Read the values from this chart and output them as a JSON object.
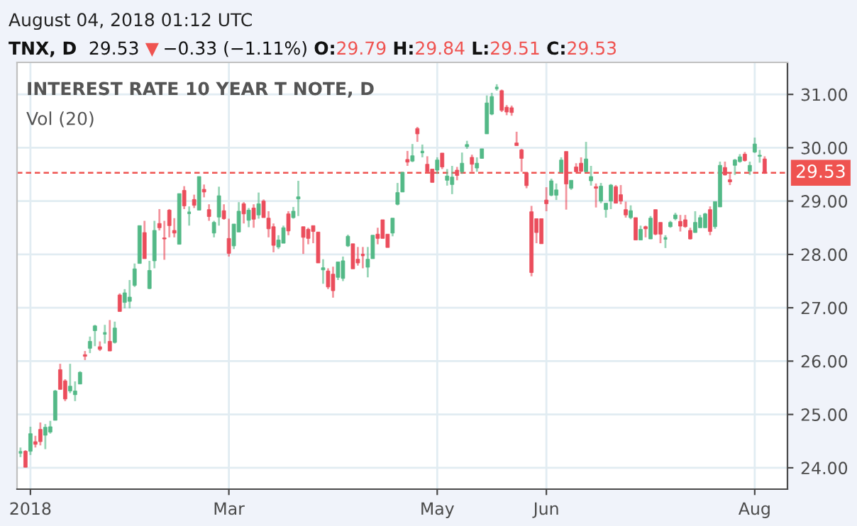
{
  "chart_data": {
    "type": "candlestick",
    "title": "INTEREST RATE 10 YEAR T NOTE, D",
    "annotations": [
      "August 04, 2018 01:12 UTC",
      "TNX, D",
      "29.53",
      "▼",
      "−0.33 (−1.11%)",
      "O:",
      "29.79",
      "H:",
      "29.84",
      "L:",
      "29.51",
      "C:",
      "29.53",
      "Vol (20)"
    ],
    "categories": [
      null,
      null,
      "2018",
      null,
      null,
      null,
      null,
      null,
      null,
      null,
      null,
      null,
      null,
      null,
      null,
      null,
      null,
      null,
      null,
      null,
      null,
      null,
      null,
      null,
      null,
      null,
      null,
      null,
      null,
      null,
      null,
      null,
      null,
      null,
      null,
      null,
      null,
      null,
      null,
      null,
      null,
      null,
      "Mar",
      null,
      null,
      null,
      null,
      null,
      null,
      null,
      null,
      null,
      null,
      null,
      null,
      null,
      null,
      null,
      null,
      null,
      null,
      null,
      null,
      null,
      null,
      null,
      null,
      null,
      null,
      null,
      null,
      null,
      null,
      null,
      null,
      null,
      null,
      null,
      null,
      null,
      null,
      null,
      null,
      null,
      "May",
      null,
      null,
      null,
      null,
      null,
      null,
      null,
      null,
      null,
      null,
      null,
      null,
      null,
      null,
      null,
      null,
      null,
      null,
      null,
      null,
      null,
      "Jun",
      null,
      null,
      null,
      null,
      null,
      null,
      null,
      null,
      null,
      null,
      null,
      null,
      null,
      null,
      null,
      null,
      null,
      null,
      null,
      null,
      null,
      null,
      null,
      null,
      null,
      null,
      null,
      null,
      null,
      null,
      null,
      null,
      null,
      null,
      null,
      null,
      null,
      null,
      null,
      null,
      null,
      "Aug",
      null,
      null
    ],
    "ohlc": [
      [
        24.29,
        24.38,
        24.2,
        24.29
      ],
      [
        24.31,
        24.33,
        24.01,
        24.01
      ],
      [
        24.31,
        24.77,
        24.24,
        24.64
      ],
      [
        24.49,
        24.6,
        24.38,
        24.44
      ],
      [
        24.72,
        24.85,
        24.42,
        24.49
      ],
      [
        24.61,
        24.82,
        24.35,
        24.76
      ],
      [
        24.67,
        24.88,
        24.64,
        24.77
      ],
      [
        24.89,
        25.46,
        24.89,
        25.44
      ],
      [
        25.84,
        25.95,
        25.47,
        25.47
      ],
      [
        25.63,
        25.66,
        25.25,
        25.29
      ],
      [
        25.44,
        25.95,
        25.4,
        25.53
      ],
      [
        25.37,
        25.62,
        25.25,
        25.44
      ],
      [
        25.57,
        25.81,
        25.57,
        25.79
      ],
      [
        26.12,
        26.19,
        26.02,
        26.09
      ],
      [
        26.24,
        26.46,
        26.15,
        26.37
      ],
      [
        26.57,
        26.68,
        26.28,
        26.66
      ],
      [
        26.27,
        26.37,
        26.19,
        26.22
      ],
      [
        26.52,
        26.68,
        26.33,
        26.52
      ],
      [
        26.37,
        26.77,
        26.19,
        26.19
      ],
      [
        26.35,
        26.74,
        26.33,
        26.62
      ],
      [
        27.24,
        27.27,
        26.93,
        26.93
      ],
      [
        27.1,
        27.35,
        26.99,
        27.28
      ],
      [
        27.12,
        27.52,
        26.99,
        27.2
      ],
      [
        27.42,
        27.83,
        27.39,
        27.73
      ],
      [
        27.83,
        28.54,
        27.83,
        28.54
      ],
      [
        28.41,
        28.63,
        27.92,
        27.92
      ],
      [
        27.36,
        27.88,
        27.35,
        27.7
      ],
      [
        27.88,
        28.63,
        27.74,
        28.45
      ],
      [
        28.58,
        28.85,
        28.45,
        28.5
      ],
      [
        28.31,
        28.63,
        27.9,
        28.29
      ],
      [
        28.83,
        28.85,
        28.32,
        28.54
      ],
      [
        28.45,
        28.68,
        28.32,
        28.4
      ],
      [
        28.19,
        29.14,
        28.19,
        29.14
      ],
      [
        29.2,
        29.28,
        28.85,
        28.91
      ],
      [
        28.78,
        28.9,
        28.54,
        28.78
      ],
      [
        29.03,
        29.12,
        28.87,
        28.92
      ],
      [
        28.83,
        29.46,
        28.83,
        29.46
      ],
      [
        29.22,
        29.31,
        29.07,
        29.17
      ],
      [
        28.84,
        28.94,
        28.63,
        28.71
      ],
      [
        28.4,
        28.63,
        28.32,
        28.6
      ],
      [
        28.7,
        29.27,
        28.54,
        29.1
      ],
      [
        28.82,
        28.94,
        28.65,
        28.67
      ],
      [
        28.3,
        28.67,
        27.96,
        28.02
      ],
      [
        28.16,
        28.57,
        28.1,
        28.57
      ],
      [
        28.42,
        28.98,
        28.42,
        28.81
      ],
      [
        28.95,
        28.98,
        28.58,
        28.76
      ],
      [
        28.64,
        28.87,
        28.51,
        28.83
      ],
      [
        28.87,
        28.94,
        28.5,
        28.66
      ],
      [
        28.74,
        29.16,
        28.67,
        28.95
      ],
      [
        29.0,
        29.03,
        28.69,
        28.69
      ],
      [
        28.68,
        28.81,
        28.32,
        28.48
      ],
      [
        28.52,
        28.58,
        28.04,
        28.17
      ],
      [
        28.14,
        28.36,
        28.1,
        28.27
      ],
      [
        28.21,
        28.54,
        28.21,
        28.5
      ],
      [
        28.76,
        28.81,
        28.36,
        28.44
      ],
      [
        28.69,
        28.89,
        28.67,
        28.81
      ],
      [
        29.04,
        29.38,
        28.72,
        29.08
      ],
      [
        28.52,
        28.52,
        28.01,
        28.32
      ],
      [
        28.47,
        28.5,
        28.19,
        28.3
      ],
      [
        28.54,
        28.54,
        28.21,
        28.43
      ],
      [
        28.42,
        28.42,
        27.84,
        27.84
      ],
      [
        27.71,
        27.91,
        27.45,
        27.75
      ],
      [
        27.69,
        27.74,
        27.35,
        27.39
      ],
      [
        27.63,
        27.77,
        27.19,
        27.32
      ],
      [
        27.57,
        27.86,
        27.52,
        27.86
      ],
      [
        27.55,
        27.96,
        27.5,
        27.88
      ],
      [
        28.16,
        28.37,
        28.14,
        28.34
      ],
      [
        28.2,
        28.2,
        27.73,
        27.73
      ],
      [
        27.91,
        28.14,
        27.79,
        27.84
      ],
      [
        27.99,
        28.14,
        27.74,
        27.99
      ],
      [
        27.76,
        28.14,
        27.57,
        27.91
      ],
      [
        27.92,
        28.36,
        27.92,
        28.36
      ],
      [
        28.38,
        28.5,
        28.19,
        28.3
      ],
      [
        28.65,
        28.65,
        28.3,
        28.3
      ],
      [
        28.38,
        28.38,
        28.13,
        28.13
      ],
      [
        28.4,
        28.68,
        28.34,
        28.68
      ],
      [
        28.94,
        29.34,
        28.92,
        29.16
      ],
      [
        29.17,
        29.54,
        29.17,
        29.54
      ],
      [
        29.78,
        29.94,
        29.66,
        29.73
      ],
      [
        29.75,
        30.07,
        29.73,
        29.85
      ],
      [
        30.36,
        30.39,
        30.11,
        30.26
      ],
      [
        29.92,
        30.06,
        29.82,
        29.92
      ],
      [
        29.69,
        29.84,
        29.55,
        29.55
      ],
      [
        29.6,
        29.6,
        29.35,
        29.35
      ],
      [
        29.58,
        29.82,
        29.51,
        29.77
      ],
      [
        29.9,
        29.9,
        29.6,
        29.64
      ],
      [
        29.39,
        29.6,
        29.29,
        29.47
      ],
      [
        29.31,
        29.66,
        29.13,
        29.45
      ],
      [
        29.58,
        29.64,
        29.39,
        29.48
      ],
      [
        29.55,
        29.91,
        29.51,
        29.71
      ],
      [
        30.02,
        30.13,
        29.98,
        30.06
      ],
      [
        29.82,
        29.87,
        29.55,
        29.69
      ],
      [
        29.62,
        29.82,
        29.55,
        29.71
      ],
      [
        29.8,
        29.98,
        29.8,
        29.98
      ],
      [
        30.26,
        30.98,
        30.26,
        30.84
      ],
      [
        30.63,
        31.03,
        30.61,
        30.96
      ],
      [
        31.12,
        31.19,
        31.07,
        31.12
      ],
      [
        31.07,
        31.09,
        30.67,
        30.7
      ],
      [
        30.76,
        30.8,
        30.61,
        30.67
      ],
      [
        30.75,
        30.79,
        30.6,
        30.66
      ],
      [
        30.09,
        30.3,
        30.04,
        30.04
      ],
      [
        29.96,
        29.98,
        29.55,
        29.8
      ],
      [
        29.53,
        29.53,
        29.24,
        29.29
      ],
      [
        28.8,
        28.91,
        27.59,
        27.66
      ],
      [
        28.67,
        28.67,
        28.21,
        28.41
      ],
      [
        28.67,
        28.67,
        28.2,
        28.2
      ],
      [
        29.02,
        29.26,
        28.81,
        28.95
      ],
      [
        29.11,
        29.42,
        29.09,
        29.38
      ],
      [
        29.11,
        29.33,
        29.02,
        29.21
      ],
      [
        29.54,
        29.82,
        29.54,
        29.77
      ],
      [
        29.93,
        29.93,
        28.84,
        29.32
      ],
      [
        29.24,
        29.39,
        29.21,
        29.39
      ],
      [
        29.64,
        29.71,
        29.54,
        29.55
      ],
      [
        29.71,
        29.82,
        29.54,
        29.56
      ],
      [
        29.55,
        30.11,
        29.55,
        29.79
      ],
      [
        29.38,
        29.66,
        29.29,
        29.46
      ],
      [
        29.27,
        29.33,
        28.88,
        29.24
      ],
      [
        29.0,
        29.34,
        28.96,
        29.28
      ],
      [
        28.84,
        28.96,
        28.69,
        28.96
      ],
      [
        29.0,
        29.32,
        28.85,
        29.3
      ],
      [
        29.27,
        29.3,
        28.96,
        28.96
      ],
      [
        29.12,
        29.3,
        28.94,
        29.0
      ],
      [
        28.84,
        28.99,
        28.69,
        28.74
      ],
      [
        28.69,
        28.92,
        28.66,
        28.82
      ],
      [
        28.69,
        28.69,
        28.27,
        28.27
      ],
      [
        28.27,
        28.54,
        28.27,
        28.47
      ],
      [
        28.52,
        28.54,
        28.32,
        28.48
      ],
      [
        28.29,
        28.72,
        28.29,
        28.68
      ],
      [
        28.84,
        28.84,
        28.36,
        28.38
      ],
      [
        28.6,
        28.6,
        28.21,
        28.38
      ],
      [
        28.3,
        28.36,
        28.12,
        28.3
      ],
      [
        28.52,
        28.63,
        28.5,
        28.6
      ],
      [
        28.67,
        28.78,
        28.64,
        28.74
      ],
      [
        28.62,
        28.74,
        28.43,
        28.53
      ],
      [
        28.65,
        28.74,
        28.5,
        28.52
      ],
      [
        28.45,
        28.5,
        28.28,
        28.29
      ],
      [
        28.41,
        28.81,
        28.41,
        28.6
      ],
      [
        28.5,
        28.74,
        28.5,
        28.69
      ],
      [
        28.5,
        28.78,
        28.5,
        28.76
      ],
      [
        28.84,
        28.9,
        28.36,
        28.43
      ],
      [
        28.52,
        28.99,
        28.48,
        28.99
      ],
      [
        28.89,
        29.74,
        28.89,
        29.67
      ],
      [
        29.63,
        29.74,
        29.48,
        29.49
      ],
      [
        29.4,
        29.52,
        29.3,
        29.36
      ],
      [
        29.67,
        29.79,
        29.49,
        29.77
      ],
      [
        29.74,
        29.88,
        29.72,
        29.83
      ],
      [
        29.88,
        29.92,
        29.74,
        29.76
      ],
      [
        29.56,
        29.74,
        29.49,
        29.67
      ],
      [
        29.92,
        30.19,
        29.9,
        30.07
      ],
      [
        29.84,
        29.96,
        29.72,
        29.86
      ],
      [
        29.79,
        29.84,
        29.51,
        29.53
      ]
    ],
    "colors": [
      "#53b987",
      "#eb4d5c",
      "#53b987",
      "#eb4d5c",
      "#eb4d5c",
      "#53b987",
      "#53b987",
      "#53b987",
      "#eb4d5c",
      "#eb4d5c",
      "#53b987",
      "#53b987",
      "#53b987",
      "#eb4d5c",
      "#53b987",
      "#53b987",
      "#eb4d5c",
      "#53b987",
      "#eb4d5c",
      "#53b987",
      "#eb4d5c",
      "#53b987",
      "#53b987",
      "#53b987",
      "#53b987",
      "#eb4d5c",
      "#53b987",
      "#53b987",
      "#eb4d5c",
      "#eb4d5c",
      "#eb4d5c",
      "#eb4d5c",
      "#53b987",
      "#eb4d5c",
      "#53b987",
      "#eb4d5c",
      "#53b987",
      "#eb4d5c",
      "#eb4d5c",
      "#53b987",
      "#53b987",
      "#eb4d5c",
      "#eb4d5c",
      "#53b987",
      "#53b987",
      "#eb4d5c",
      "#53b987",
      "#eb4d5c",
      "#53b987",
      "#eb4d5c",
      "#eb4d5c",
      "#eb4d5c",
      "#53b987",
      "#53b987",
      "#eb4d5c",
      "#53b987",
      "#53b987",
      "#eb4d5c",
      "#eb4d5c",
      "#eb4d5c",
      "#eb4d5c",
      "#53b987",
      "#eb4d5c",
      "#eb4d5c",
      "#53b987",
      "#53b987",
      "#53b987",
      "#eb4d5c",
      "#eb4d5c",
      "#eb4d5c",
      "#53b987",
      "#53b987",
      "#eb4d5c",
      "#eb4d5c",
      "#eb4d5c",
      "#53b987",
      "#53b987",
      "#53b987",
      "#eb4d5c",
      "#53b987",
      "#eb4d5c",
      "#53b987",
      "#eb4d5c",
      "#eb4d5c",
      "#53b987",
      "#eb4d5c",
      "#53b987",
      "#53b987",
      "#eb4d5c",
      "#53b987",
      "#53b987",
      "#eb4d5c",
      "#53b987",
      "#53b987",
      "#53b987",
      "#53b987",
      "#53b987",
      "#eb4d5c",
      "#eb4d5c",
      "#eb4d5c",
      "#eb4d5c",
      "#eb4d5c",
      "#eb4d5c",
      "#eb4d5c",
      "#eb4d5c",
      "#eb4d5c",
      "#eb4d5c",
      "#53b987",
      "#53b987",
      "#53b987",
      "#eb4d5c",
      "#53b987",
      "#eb4d5c",
      "#eb4d5c",
      "#53b987",
      "#53b987",
      "#eb4d5c",
      "#53b987",
      "#53b987",
      "#53b987",
      "#eb4d5c",
      "#eb4d5c",
      "#eb4d5c",
      "#53b987",
      "#eb4d5c",
      "#53b987",
      "#eb4d5c",
      "#53b987",
      "#eb4d5c",
      "#eb4d5c",
      "#53b987",
      "#53b987",
      "#53b987",
      "#eb4d5c",
      "#eb4d5c",
      "#eb4d5c",
      "#53b987",
      "#53b987",
      "#53b987",
      "#eb4d5c",
      "#53b987",
      "#53b987",
      "#eb4d5c",
      "#eb4d5c",
      "#53b987",
      "#53b987",
      "#eb4d5c",
      "#53b987",
      "#53b987",
      "#53b987",
      "#eb4d5c"
    ],
    "ylim": [
      23.6,
      31.6
    ],
    "yticks": [
      {
        "value": 24,
        "label": "24.00"
      },
      {
        "value": 25,
        "label": "25.00"
      },
      {
        "value": 26,
        "label": "26.00"
      },
      {
        "value": 27,
        "label": "27.00"
      },
      {
        "value": 28,
        "label": "28.00"
      },
      {
        "value": 29,
        "label": "29.00"
      },
      {
        "value": 30,
        "label": "30.00"
      },
      {
        "value": 31,
        "label": "31.00"
      }
    ],
    "ref_lines": [
      {
        "axis": "y",
        "value": 29.53,
        "label": "29.53",
        "color": "#ef5350",
        "line_style": "dashed"
      }
    ],
    "grid": true
  }
}
